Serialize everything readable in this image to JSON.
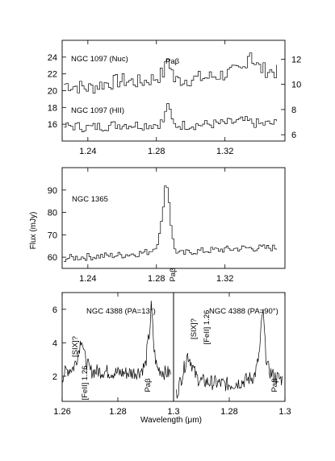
{
  "figure": {
    "ylabel": "Flux (mJy)",
    "xlabel": "Wavelength (μm)"
  },
  "chart_data": [
    {
      "type": "line",
      "panel": "top",
      "xlim": [
        1.225,
        1.355
      ],
      "x_ticks": [
        "1.24",
        "1.28",
        "1.32"
      ],
      "ylim_left": [
        14,
        26
      ],
      "y_ticks_left": [
        "16",
        "18",
        "20",
        "22",
        "24"
      ],
      "ylim_right": [
        5.5,
        13.5
      ],
      "y_ticks_right": [
        "6",
        "8",
        "10",
        "12"
      ],
      "series": [
        {
          "name": "NGC 1097 (Nuc)",
          "axis": "left",
          "x": [
            1.226,
            1.23,
            1.24,
            1.25,
            1.26,
            1.27,
            1.28,
            1.284,
            1.286,
            1.288,
            1.29,
            1.3,
            1.31,
            1.32,
            1.33,
            1.334,
            1.336,
            1.34,
            1.35
          ],
          "y": [
            20.8,
            20.6,
            20.3,
            20.9,
            21.2,
            21.0,
            21.6,
            22.2,
            23.8,
            22.8,
            21.2,
            21.4,
            21.6,
            22.0,
            22.5,
            25.0,
            23.5,
            22.6,
            22.2
          ]
        },
        {
          "name": "NGC 1097 (HII)",
          "axis": "left",
          "x": [
            1.226,
            1.23,
            1.24,
            1.25,
            1.26,
            1.27,
            1.28,
            1.284,
            1.286,
            1.288,
            1.29,
            1.3,
            1.31,
            1.32,
            1.33,
            1.34,
            1.35
          ],
          "y": [
            15.7,
            15.8,
            15.6,
            15.8,
            16.0,
            15.9,
            16.0,
            16.4,
            18.7,
            16.6,
            15.9,
            15.9,
            16.0,
            16.1,
            16.4,
            16.0,
            16.1
          ]
        }
      ],
      "annotations": [
        "Paβ"
      ]
    },
    {
      "type": "line",
      "panel": "middle",
      "xlim": [
        1.225,
        1.355
      ],
      "x_ticks": [
        "1.24",
        "1.28",
        "1.32"
      ],
      "ylim": [
        55,
        100
      ],
      "y_ticks": [
        "60",
        "70",
        "80",
        "90"
      ],
      "series": [
        {
          "name": "NGC 1365",
          "x": [
            1.226,
            1.24,
            1.26,
            1.27,
            1.275,
            1.278,
            1.28,
            1.282,
            1.283,
            1.284,
            1.285,
            1.286,
            1.287,
            1.288,
            1.289,
            1.29,
            1.292,
            1.295,
            1.3,
            1.31,
            1.32,
            1.33,
            1.35
          ],
          "y": [
            59.5,
            60.2,
            61.0,
            61.8,
            62.5,
            64.0,
            66.5,
            72.0,
            80.0,
            88.0,
            94.0,
            91.0,
            84.0,
            75.0,
            68.0,
            64.0,
            62.0,
            61.5,
            62.5,
            63.0,
            63.5,
            64.0,
            64.2
          ]
        }
      ],
      "annotations": [
        "Paβ"
      ]
    },
    {
      "type": "line",
      "panel": "bottom-left",
      "xlim": [
        1.26,
        1.3
      ],
      "x_ticks": [
        "1.26",
        "1.28",
        "1.3"
      ],
      "ylim": [
        0.5,
        7.0
      ],
      "y_ticks": [
        "2",
        "4",
        "6"
      ],
      "series": [
        {
          "name": "NGC 4388 (PA=13°)",
          "x": [
            1.26,
            1.262,
            1.264,
            1.265,
            1.266,
            1.267,
            1.268,
            1.27,
            1.275,
            1.28,
            1.285,
            1.288,
            1.29,
            1.2905,
            1.2915,
            1.292,
            1.2925,
            1.293,
            1.294,
            1.297,
            1.299
          ],
          "y": [
            2.0,
            2.4,
            2.5,
            2.9,
            3.6,
            4.4,
            3.2,
            2.3,
            2.3,
            2.2,
            2.2,
            2.3,
            2.7,
            3.6,
            4.8,
            6.2,
            5.0,
            3.6,
            2.5,
            2.2,
            2.2
          ]
        }
      ],
      "annotations": [
        "[SIX]?",
        "[FeII] 1.26",
        "Paβ"
      ]
    },
    {
      "type": "line",
      "panel": "bottom-right",
      "xlim": [
        1.26,
        1.3
      ],
      "x_ticks": [
        "1.28",
        "1.3"
      ],
      "ylim": [
        0.5,
        7.0
      ],
      "y_ticks": [],
      "series": [
        {
          "name": "NGC 4388 (PA=90°)",
          "x": [
            1.261,
            1.263,
            1.264,
            1.265,
            1.266,
            1.267,
            1.268,
            1.27,
            1.275,
            1.28,
            1.285,
            1.289,
            1.29,
            1.291,
            1.2915,
            1.292,
            1.2925,
            1.293,
            1.294,
            1.296,
            1.299
          ],
          "y": [
            0.9,
            2.0,
            2.6,
            3.3,
            3.0,
            2.5,
            2.0,
            1.7,
            1.6,
            1.5,
            1.7,
            2.0,
            2.6,
            3.6,
            5.0,
            6.0,
            5.0,
            3.5,
            2.4,
            2.0,
            1.8
          ]
        }
      ],
      "annotations": [
        "[SIX]?",
        "[FeII] 1.26",
        "Paβ"
      ]
    }
  ]
}
